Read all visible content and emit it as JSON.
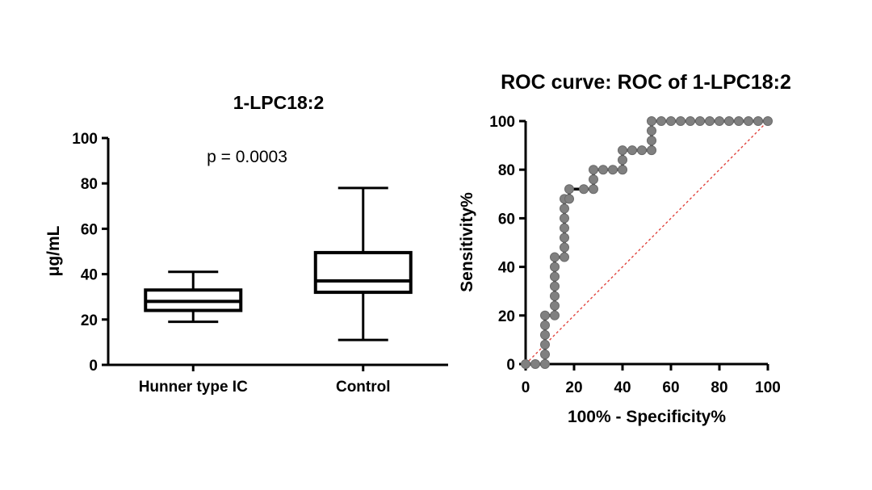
{
  "colors": {
    "line": "#000000",
    "marker": "#808080",
    "reference": "#e0403a"
  },
  "chart_data": [
    {
      "type": "box",
      "title": "1-LPC18:2",
      "xlabel": "",
      "ylabel": "μg/mL",
      "ylim": [
        0,
        100
      ],
      "yticks": [
        0,
        20,
        40,
        60,
        80,
        100
      ],
      "categories": [
        "Hunner type IC",
        "Control"
      ],
      "boxes": [
        {
          "category": "Hunner type IC",
          "min": 19,
          "q1": 24,
          "median": 28,
          "q3": 33,
          "max": 41
        },
        {
          "category": "Control",
          "min": 11,
          "q1": 32,
          "median": 37,
          "q3": 49.5,
          "max": 78
        }
      ],
      "annotation": "p = 0.0003",
      "grid": false
    },
    {
      "type": "line",
      "title": "ROC curve: ROC of 1-LPC18:2",
      "xlabel": "100% - Specificity%",
      "ylabel": "Sensitivity%",
      "xlim": [
        0,
        100
      ],
      "ylim": [
        0,
        100
      ],
      "xticks": [
        0,
        20,
        40,
        60,
        80,
        100
      ],
      "yticks": [
        0,
        20,
        40,
        60,
        80,
        100
      ],
      "series": [
        {
          "step_path": [
            [
              0,
              0
            ],
            [
              8,
              0
            ],
            [
              8,
              20
            ],
            [
              12,
              20
            ],
            [
              12,
              44
            ],
            [
              16,
              44
            ],
            [
              16,
              68
            ],
            [
              18,
              68
            ],
            [
              18,
              72
            ],
            [
              24,
              72
            ],
            [
              28,
              72
            ],
            [
              28,
              80
            ],
            [
              40,
              80
            ],
            [
              40,
              88
            ],
            [
              52,
              88
            ],
            [
              52,
              100
            ],
            [
              100,
              100
            ]
          ],
          "points": [
            [
              0,
              0
            ],
            [
              4,
              0
            ],
            [
              8,
              0
            ],
            [
              8,
              4
            ],
            [
              8,
              8
            ],
            [
              8,
              12
            ],
            [
              8,
              16
            ],
            [
              8,
              20
            ],
            [
              12,
              20
            ],
            [
              12,
              24
            ],
            [
              12,
              28
            ],
            [
              12,
              32
            ],
            [
              12,
              36
            ],
            [
              12,
              40
            ],
            [
              12,
              44
            ],
            [
              16,
              44
            ],
            [
              16,
              48
            ],
            [
              16,
              52
            ],
            [
              16,
              56
            ],
            [
              16,
              60
            ],
            [
              16,
              64
            ],
            [
              16,
              68
            ],
            [
              18,
              68
            ],
            [
              18,
              72
            ],
            [
              24,
              72
            ],
            [
              28,
              72
            ],
            [
              28,
              76
            ],
            [
              28,
              80
            ],
            [
              32,
              80
            ],
            [
              36,
              80
            ],
            [
              40,
              80
            ],
            [
              40,
              84
            ],
            [
              40,
              88
            ],
            [
              44,
              88
            ],
            [
              48,
              88
            ],
            [
              52,
              88
            ],
            [
              52,
              92
            ],
            [
              52,
              96
            ],
            [
              52,
              100
            ],
            [
              56,
              100
            ],
            [
              60,
              100
            ],
            [
              64,
              100
            ],
            [
              68,
              100
            ],
            [
              72,
              100
            ],
            [
              76,
              100
            ],
            [
              80,
              100
            ],
            [
              84,
              100
            ],
            [
              88,
              100
            ],
            [
              92,
              100
            ],
            [
              96,
              100
            ],
            [
              100,
              100
            ]
          ]
        }
      ],
      "reference_line": [
        [
          0,
          0
        ],
        [
          100,
          100
        ]
      ],
      "grid": false
    }
  ]
}
